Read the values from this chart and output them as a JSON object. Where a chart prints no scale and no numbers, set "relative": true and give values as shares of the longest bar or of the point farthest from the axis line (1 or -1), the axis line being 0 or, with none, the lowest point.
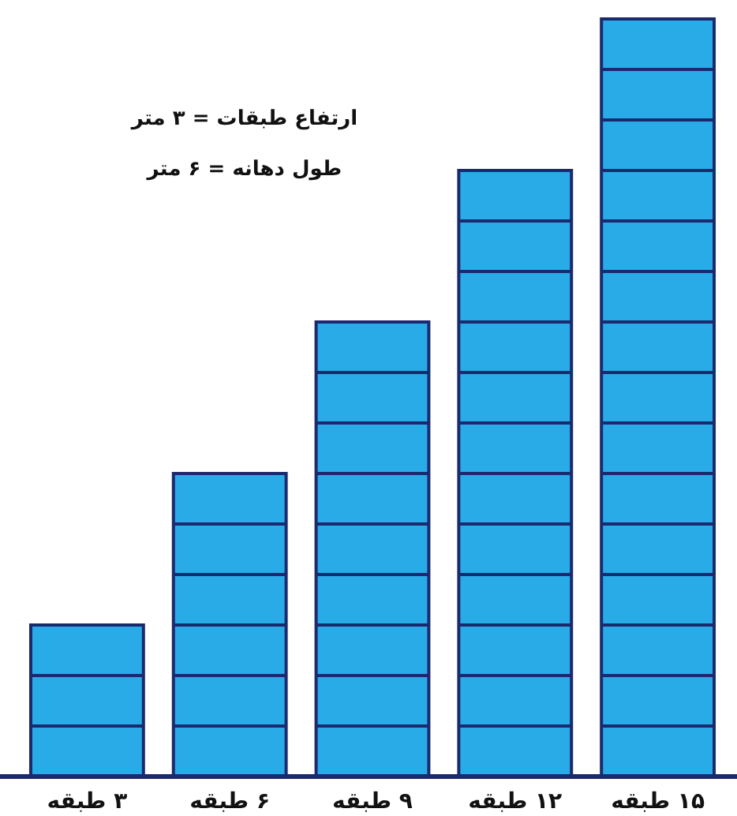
{
  "chart_data": {
    "type": "bar",
    "relative": true,
    "categories": [
      "۳ طبقه",
      "۶ طبقه",
      "۹ طبقه",
      "۱۲ طبقه",
      "۱۵ طبقه"
    ],
    "annotations": [
      "ارتفاع طبقات = ۳ متر",
      "طول دهانه = ۶ متر"
    ],
    "color": "#29abe8",
    "values": [
      0.2,
      0.4,
      0.6,
      0.8,
      1
    ]
  }
}
